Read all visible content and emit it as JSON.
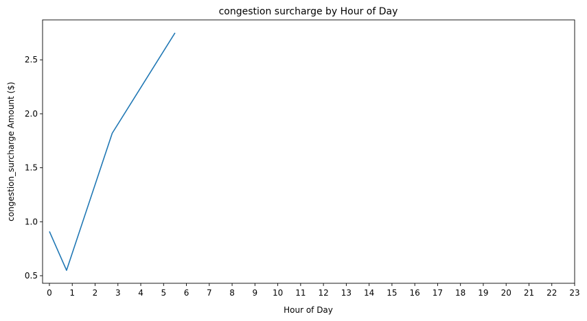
{
  "chart_data": {
    "type": "line",
    "title": "congestion surcharge by Hour of Day",
    "xlabel": "Hour of Day",
    "ylabel": "congestion_surcharge Amount ($)",
    "xlim": [
      -0.3,
      23
    ],
    "ylim": [
      0.43,
      2.87
    ],
    "x_ticks": [
      "0",
      "1",
      "2",
      "3",
      "4",
      "5",
      "6",
      "7",
      "8",
      "9",
      "10",
      "11",
      "12",
      "13",
      "14",
      "15",
      "16",
      "17",
      "18",
      "19",
      "20",
      "21",
      "22",
      "23"
    ],
    "y_ticks": [
      "0.5",
      "1.0",
      "1.5",
      "2.0",
      "2.5"
    ],
    "grid": false,
    "series": [
      {
        "color": "#1f77b4",
        "x": [
          0,
          0.75,
          2.75,
          5.5
        ],
        "y": [
          0.91,
          0.55,
          1.82,
          2.75
        ]
      }
    ]
  }
}
